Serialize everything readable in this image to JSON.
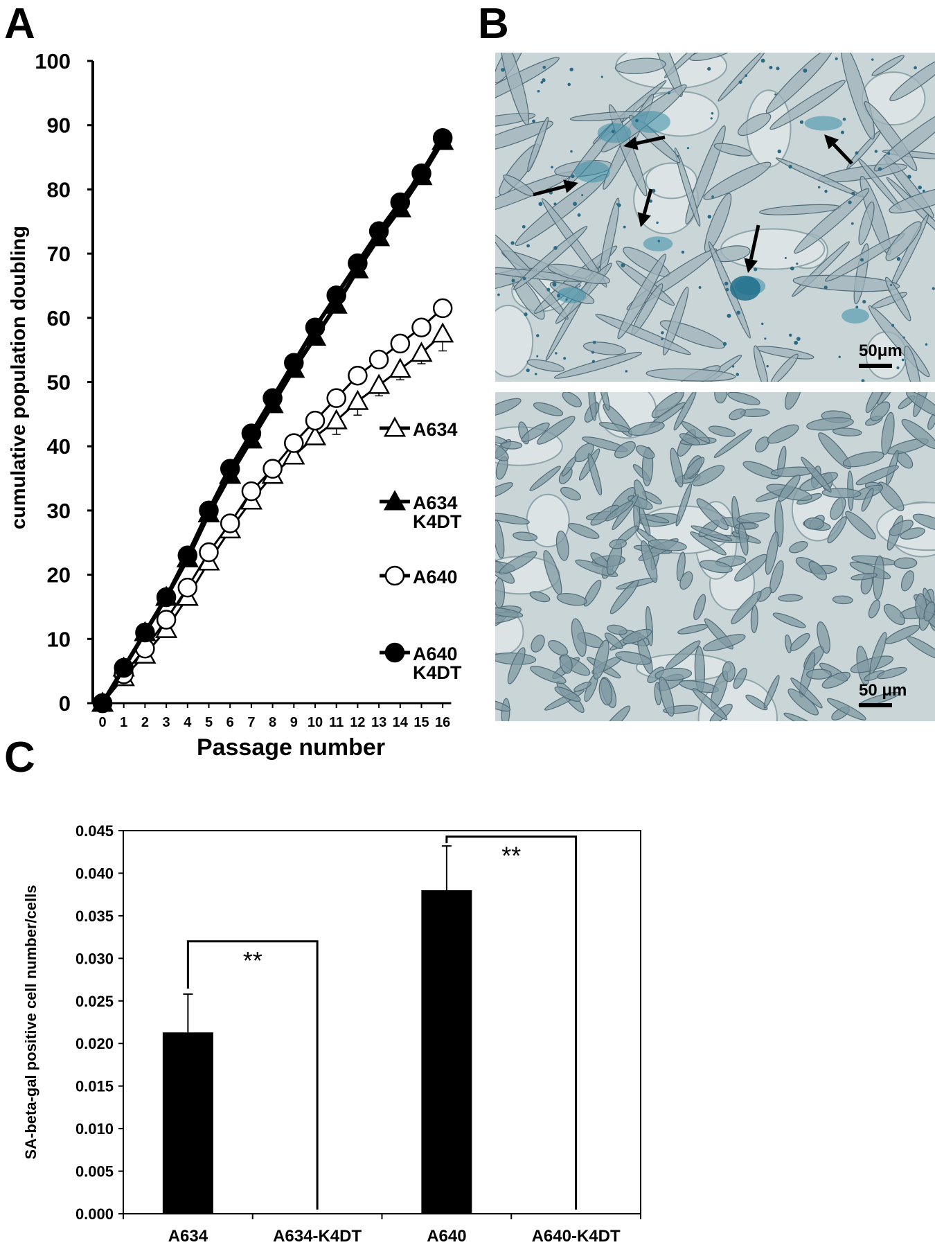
{
  "panels": {
    "a": "A",
    "b": "B",
    "c": "C"
  },
  "chart_data": [
    {
      "type": "line",
      "panel": "A",
      "title": "",
      "xlabel": "Passage number",
      "ylabel": "cumulative population doubling",
      "x": [
        0,
        1,
        2,
        3,
        4,
        5,
        6,
        7,
        8,
        9,
        10,
        11,
        12,
        13,
        14,
        15,
        16
      ],
      "ylim": [
        0,
        100
      ],
      "yticks": [
        0,
        10,
        20,
        30,
        40,
        50,
        60,
        70,
        80,
        90,
        100
      ],
      "xticks": [
        "0",
        "1",
        "2",
        "3",
        "4",
        "5",
        "6",
        "7",
        "8",
        "9",
        "10",
        "11",
        "12",
        "13",
        "14",
        "15",
        "16"
      ],
      "legend_position": "right",
      "series": [
        {
          "name": "A634",
          "marker": "triangle-open",
          "values": [
            0,
            4,
            7.5,
            11.5,
            16.5,
            22,
            27,
            31.5,
            35.5,
            38.5,
            41.5,
            44,
            47,
            49.5,
            52,
            54.5,
            57.5
          ],
          "errors": [
            0,
            0.5,
            0.5,
            0.5,
            0.5,
            0.5,
            0.5,
            0.5,
            0.5,
            0.5,
            0.5,
            1.5,
            1.5,
            1,
            1,
            1,
            2
          ]
        },
        {
          "name": "A634 K4DT",
          "marker": "triangle-filled",
          "values": [
            0,
            5.5,
            11,
            16.5,
            22.5,
            29.5,
            35.5,
            41,
            46.5,
            52,
            57,
            62,
            67.5,
            72.5,
            77,
            82,
            87.5
          ],
          "errors": []
        },
        {
          "name": "A640",
          "marker": "circle-open",
          "values": [
            0,
            4.5,
            8.5,
            13,
            18,
            23.5,
            28,
            33,
            36.5,
            40.5,
            44,
            47.5,
            51,
            53.5,
            56,
            58.5,
            61.5
          ],
          "errors": []
        },
        {
          "name": "A640 K4DT",
          "marker": "circle-filled",
          "values": [
            0,
            5.5,
            11,
            16.5,
            23,
            30,
            36.5,
            42,
            47.5,
            53,
            58.5,
            63.5,
            68.5,
            73.5,
            78,
            82.5,
            88
          ],
          "errors": []
        }
      ]
    },
    {
      "type": "bar",
      "panel": "C",
      "title": "",
      "xlabel": "",
      "ylabel": "SA-beta-gal positive cell number/cells",
      "categories": [
        "A634",
        "A634-K4DT",
        "A640",
        "A640-K4DT"
      ],
      "values": [
        0.0213,
        0,
        0.038,
        0
      ],
      "errors": [
        0.0045,
        0,
        0.0052,
        0
      ],
      "ylim": [
        0,
        0.045
      ],
      "yticks": [
        "0.000",
        "0.005",
        "0.010",
        "0.015",
        "0.020",
        "0.025",
        "0.030",
        "0.035",
        "0.040",
        "0.045"
      ],
      "significance": [
        {
          "from": "A634",
          "to": "A634-K4DT",
          "label": "**"
        },
        {
          "from": "A640",
          "to": "A640-K4DT",
          "label": "**"
        }
      ]
    }
  ],
  "micrographs": [
    {
      "panel": "B",
      "position": "top",
      "scale_bar": "50μm",
      "stain": "SA-beta-gal, blue"
    },
    {
      "panel": "B",
      "position": "bottom",
      "scale_bar": "50 μm"
    }
  ],
  "colors": {
    "fg": "#000000",
    "micro_bg": "#c8d4d6",
    "stain": "#2f7f9a"
  }
}
